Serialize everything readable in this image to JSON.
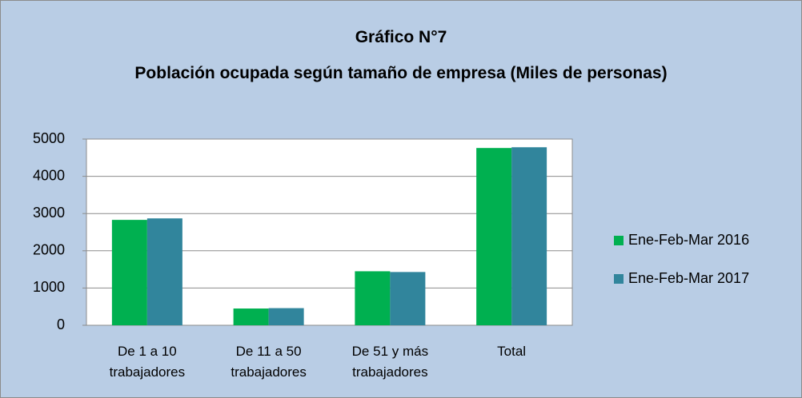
{
  "chart_data": {
    "type": "bar",
    "title": "Gráfico N°7",
    "subtitle": "Población ocupada según tamaño de empresa (Miles de personas)",
    "categories": [
      "De 1 a 10 trabajadores",
      "De 11 a 50 trabajadores",
      "De 51 y más trabajadores",
      "Total"
    ],
    "series": [
      {
        "name": "Ene-Feb-Mar 2016",
        "color": "#00b050",
        "values": [
          2830,
          450,
          1450,
          4760
        ]
      },
      {
        "name": "Ene-Feb-Mar 2017",
        "color": "#31859c",
        "values": [
          2870,
          460,
          1430,
          4780
        ]
      }
    ],
    "ylim": [
      0,
      5000
    ],
    "yticks": [
      0,
      1000,
      2000,
      3000,
      4000,
      5000
    ],
    "grid": true,
    "legend": "right"
  }
}
